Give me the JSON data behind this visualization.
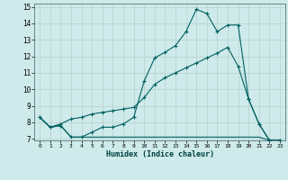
{
  "xlabel": "Humidex (Indice chaleur)",
  "bg_color": "#ceeaea",
  "grid_color": "#b8d0d0",
  "line_color": "#006060",
  "xlim": [
    -0.5,
    23.5
  ],
  "ylim": [
    6.9,
    15.2
  ],
  "xticks": [
    0,
    1,
    2,
    3,
    4,
    5,
    6,
    7,
    8,
    9,
    10,
    11,
    12,
    13,
    14,
    15,
    16,
    17,
    18,
    19,
    20,
    21,
    22,
    23
  ],
  "yticks": [
    7,
    8,
    9,
    10,
    11,
    12,
    13,
    14,
    15
  ],
  "line1_x": [
    0,
    1,
    2,
    3,
    4,
    5,
    6,
    7,
    8,
    9,
    10,
    11,
    12,
    13,
    14,
    15,
    16,
    17,
    18,
    19,
    20,
    21,
    22,
    23
  ],
  "line1_y": [
    8.3,
    7.7,
    7.8,
    7.1,
    7.1,
    7.4,
    7.7,
    7.7,
    7.9,
    8.3,
    10.5,
    11.9,
    12.25,
    12.65,
    13.5,
    14.85,
    14.6,
    13.5,
    13.9,
    13.9,
    9.4,
    7.9,
    6.9,
    6.9
  ],
  "line2_x": [
    0,
    1,
    2,
    3,
    4,
    5,
    6,
    7,
    8,
    9,
    10,
    11,
    12,
    13,
    14,
    15,
    16,
    17,
    18,
    19,
    20,
    21,
    22,
    23
  ],
  "line2_y": [
    8.3,
    7.7,
    7.9,
    8.2,
    8.3,
    8.5,
    8.6,
    8.7,
    8.8,
    8.9,
    9.5,
    10.3,
    10.7,
    11.0,
    11.3,
    11.6,
    11.9,
    12.2,
    12.55,
    11.4,
    9.4,
    7.9,
    6.9,
    6.9
  ],
  "line3_x": [
    0,
    1,
    2,
    3,
    4,
    5,
    6,
    7,
    8,
    9,
    10,
    11,
    12,
    13,
    14,
    15,
    16,
    17,
    18,
    19,
    20,
    21,
    22,
    23
  ],
  "line3_y": [
    8.3,
    7.7,
    7.8,
    7.1,
    7.1,
    7.1,
    7.1,
    7.1,
    7.1,
    7.1,
    7.1,
    7.1,
    7.1,
    7.1,
    7.1,
    7.1,
    7.1,
    7.1,
    7.1,
    7.1,
    7.1,
    7.1,
    6.9,
    6.9
  ]
}
